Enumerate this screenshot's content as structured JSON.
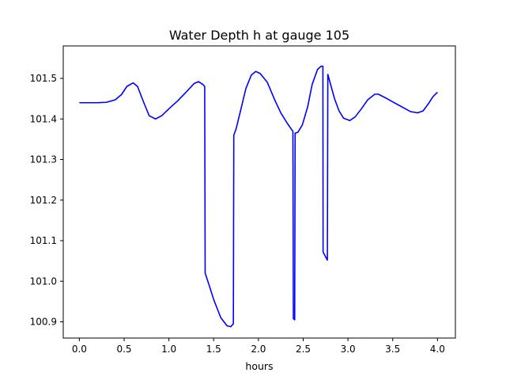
{
  "chart_data": {
    "type": "line",
    "title": "Water Depth h at gauge 105",
    "xlabel": "hours",
    "ylabel": "",
    "xlim": [
      -0.18,
      4.2
    ],
    "ylim": [
      100.86,
      101.58
    ],
    "xticks": [
      0.0,
      0.5,
      1.0,
      1.5,
      2.0,
      2.5,
      3.0,
      3.5,
      4.0
    ],
    "xtick_labels": [
      "0.0",
      "0.5",
      "1.0",
      "1.5",
      "2.0",
      "2.5",
      "3.0",
      "3.5",
      "4.0"
    ],
    "yticks": [
      100.9,
      101.0,
      101.1,
      101.2,
      101.3,
      101.4,
      101.5
    ],
    "ytick_labels": [
      "100.9",
      "101.0",
      "101.1",
      "101.2",
      "101.3",
      "101.4",
      "101.5"
    ],
    "grid": false,
    "series": [
      {
        "color": "#0000ff",
        "points": [
          [
            0.0,
            101.44
          ],
          [
            0.2,
            101.44
          ],
          [
            0.3,
            101.441
          ],
          [
            0.4,
            101.447
          ],
          [
            0.47,
            101.46
          ],
          [
            0.53,
            101.48
          ],
          [
            0.6,
            101.489
          ],
          [
            0.65,
            101.48
          ],
          [
            0.72,
            101.44
          ],
          [
            0.78,
            101.408
          ],
          [
            0.85,
            101.4
          ],
          [
            0.92,
            101.408
          ],
          [
            1.0,
            101.425
          ],
          [
            1.1,
            101.445
          ],
          [
            1.2,
            101.468
          ],
          [
            1.28,
            101.487
          ],
          [
            1.33,
            101.492
          ],
          [
            1.38,
            101.485
          ],
          [
            1.4,
            101.48
          ],
          [
            1.405,
            101.02
          ],
          [
            1.45,
            100.99
          ],
          [
            1.5,
            100.955
          ],
          [
            1.58,
            100.91
          ],
          [
            1.65,
            100.89
          ],
          [
            1.69,
            100.888
          ],
          [
            1.72,
            100.895
          ],
          [
            1.725,
            101.36
          ],
          [
            1.75,
            101.375
          ],
          [
            1.8,
            101.42
          ],
          [
            1.86,
            101.475
          ],
          [
            1.92,
            101.508
          ],
          [
            1.97,
            101.517
          ],
          [
            2.02,
            101.512
          ],
          [
            2.1,
            101.49
          ],
          [
            2.18,
            101.448
          ],
          [
            2.25,
            101.415
          ],
          [
            2.32,
            101.39
          ],
          [
            2.37,
            101.374
          ],
          [
            2.385,
            101.37
          ],
          [
            2.39,
            100.908
          ],
          [
            2.405,
            100.905
          ],
          [
            2.41,
            101.365
          ],
          [
            2.44,
            101.367
          ],
          [
            2.49,
            101.385
          ],
          [
            2.55,
            101.43
          ],
          [
            2.6,
            101.485
          ],
          [
            2.66,
            101.522
          ],
          [
            2.7,
            101.53
          ],
          [
            2.72,
            101.53
          ],
          [
            2.722,
            101.072
          ],
          [
            2.77,
            101.052
          ],
          [
            2.775,
            101.51
          ],
          [
            2.8,
            101.49
          ],
          [
            2.85,
            101.45
          ],
          [
            2.9,
            101.42
          ],
          [
            2.95,
            101.402
          ],
          [
            3.02,
            101.396
          ],
          [
            3.08,
            101.405
          ],
          [
            3.15,
            101.425
          ],
          [
            3.22,
            101.447
          ],
          [
            3.3,
            101.461
          ],
          [
            3.34,
            101.461
          ],
          [
            3.42,
            101.452
          ],
          [
            3.5,
            101.442
          ],
          [
            3.6,
            101.43
          ],
          [
            3.7,
            101.418
          ],
          [
            3.78,
            101.415
          ],
          [
            3.84,
            101.42
          ],
          [
            3.9,
            101.438
          ],
          [
            3.95,
            101.455
          ],
          [
            4.0,
            101.466
          ]
        ]
      }
    ]
  }
}
